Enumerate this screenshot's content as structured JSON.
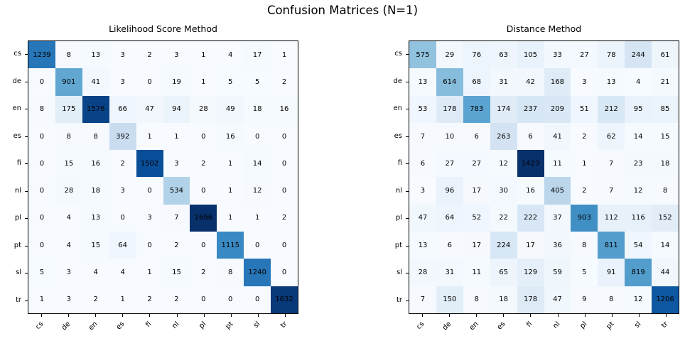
{
  "figure": {
    "title": "Confusion Matrices (N=1)",
    "background": "#ffffff",
    "text_color": "#000000"
  },
  "chart_data": [
    {
      "type": "heatmap",
      "title": "Likelihood Score Method",
      "xlabel": "",
      "ylabel": "",
      "categories": [
        "cs",
        "de",
        "en",
        "es",
        "fi",
        "nl",
        "pl",
        "pt",
        "sl",
        "tr"
      ],
      "matrix": [
        [
          1239,
          8,
          13,
          3,
          2,
          3,
          1,
          4,
          17,
          1
        ],
        [
          0,
          901,
          41,
          3,
          0,
          19,
          1,
          5,
          5,
          2
        ],
        [
          8,
          175,
          1576,
          66,
          47,
          94,
          28,
          49,
          18,
          16
        ],
        [
          0,
          8,
          8,
          392,
          1,
          1,
          0,
          16,
          0,
          0
        ],
        [
          0,
          15,
          16,
          2,
          1502,
          3,
          2,
          1,
          14,
          0
        ],
        [
          0,
          28,
          18,
          3,
          0,
          534,
          0,
          1,
          12,
          0
        ],
        [
          0,
          4,
          13,
          0,
          3,
          7,
          1696,
          1,
          1,
          2
        ],
        [
          0,
          4,
          15,
          64,
          0,
          2,
          0,
          1115,
          0,
          0
        ],
        [
          5,
          3,
          4,
          4,
          1,
          15,
          2,
          8,
          1240,
          0
        ],
        [
          1,
          3,
          2,
          1,
          2,
          2,
          0,
          0,
          0,
          1632
        ]
      ],
      "vmin": 0,
      "vmax": 1696,
      "annotation_color": "#000000",
      "colormap": {
        "name": "Blues",
        "stops": [
          "#f7fbff",
          "#deebf7",
          "#c6dbef",
          "#9ecae1",
          "#6baed6",
          "#4292c6",
          "#2171b5",
          "#08519c",
          "#08306b"
        ]
      },
      "legend": "none",
      "grid": false
    },
    {
      "type": "heatmap",
      "title": "Distance Method",
      "xlabel": "",
      "ylabel": "",
      "categories": [
        "cs",
        "de",
        "en",
        "es",
        "fi",
        "nl",
        "pl",
        "pt",
        "sl",
        "tr"
      ],
      "matrix": [
        [
          575,
          29,
          76,
          63,
          105,
          33,
          27,
          78,
          244,
          61
        ],
        [
          13,
          614,
          68,
          31,
          42,
          168,
          3,
          13,
          4,
          21
        ],
        [
          53,
          178,
          783,
          174,
          237,
          209,
          51,
          212,
          95,
          85
        ],
        [
          7,
          10,
          6,
          263,
          6,
          41,
          2,
          62,
          14,
          15
        ],
        [
          6,
          27,
          27,
          12,
          1423,
          11,
          1,
          7,
          23,
          18
        ],
        [
          3,
          96,
          17,
          30,
          16,
          405,
          2,
          7,
          12,
          8
        ],
        [
          47,
          64,
          52,
          22,
          222,
          37,
          903,
          112,
          116,
          152
        ],
        [
          13,
          6,
          17,
          224,
          17,
          36,
          8,
          811,
          54,
          14
        ],
        [
          28,
          31,
          11,
          65,
          129,
          59,
          5,
          91,
          819,
          44
        ],
        [
          7,
          150,
          8,
          18,
          178,
          47,
          9,
          8,
          12,
          1206
        ]
      ],
      "vmin": 0,
      "vmax": 1423,
      "annotation_color": "#000000",
      "colormap": {
        "name": "Blues",
        "stops": [
          "#f7fbff",
          "#deebf7",
          "#c6dbef",
          "#9ecae1",
          "#6baed6",
          "#4292c6",
          "#2171b5",
          "#08519c",
          "#08306b"
        ]
      },
      "legend": "none",
      "grid": false
    }
  ]
}
